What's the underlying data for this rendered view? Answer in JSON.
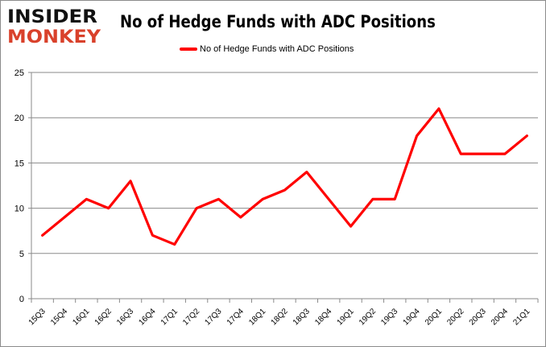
{
  "logo": {
    "line1": "INSIDER",
    "line2": "MONKEY"
  },
  "chart_data": {
    "type": "line",
    "title": "No of Hedge Funds with ADC Positions",
    "xlabel": "",
    "ylabel": "",
    "categories": [
      "15Q3",
      "15Q4",
      "16Q1",
      "16Q2",
      "16Q3",
      "16Q4",
      "17Q1",
      "17Q2",
      "17Q3",
      "17Q4",
      "18Q1",
      "18Q2",
      "18Q3",
      "18Q4",
      "19Q1",
      "19Q2",
      "19Q3",
      "19Q4",
      "20Q1",
      "20Q2",
      "20Q3",
      "20Q4",
      "21Q1"
    ],
    "series": [
      {
        "name": "No of Hedge Funds with ADC Positions",
        "color": "#ff0000",
        "values": [
          7,
          9,
          11,
          10,
          13,
          7,
          6,
          10,
          11,
          9,
          11,
          12,
          14,
          11,
          8,
          11,
          11,
          18,
          21,
          16,
          16,
          16,
          18
        ]
      }
    ],
    "ylim": [
      0,
      25
    ],
    "yticks": [
      0,
      5,
      10,
      15,
      20,
      25
    ],
    "grid": true,
    "legend": "top-center"
  }
}
